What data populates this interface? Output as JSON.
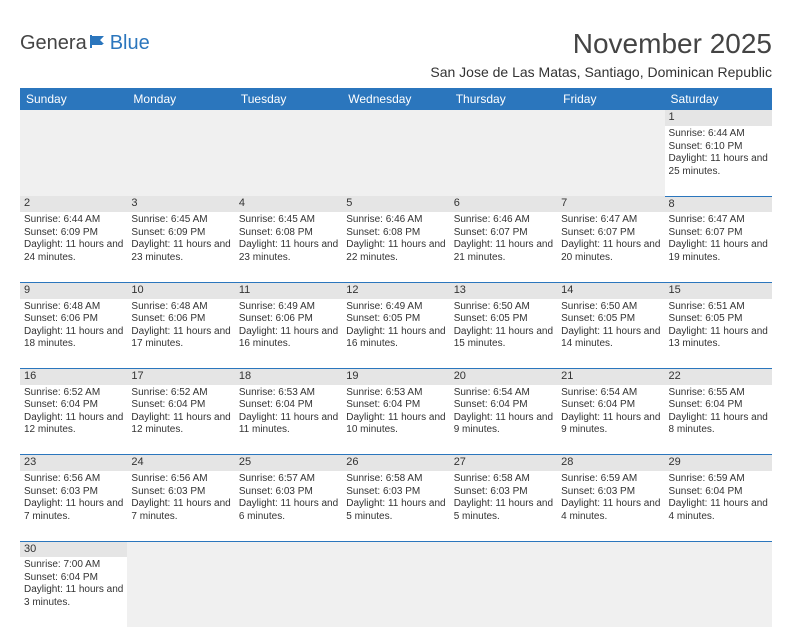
{
  "logo": {
    "text1": "Genera",
    "text2": "Blue"
  },
  "title": "November 2025",
  "subtitle": "San Jose de Las Matas, Santiago, Dominican Republic",
  "colors": {
    "header_bg": "#2b76bd",
    "header_fg": "#ffffff",
    "daynum_bg": "#e5e5e5",
    "rule": "#2b76bd",
    "empty_bg": "#f0f0f0",
    "text": "#333333"
  },
  "day_names": [
    "Sunday",
    "Monday",
    "Tuesday",
    "Wednesday",
    "Thursday",
    "Friday",
    "Saturday"
  ],
  "weeks": [
    [
      null,
      null,
      null,
      null,
      null,
      null,
      {
        "n": "1",
        "sr": "6:44 AM",
        "ss": "6:10 PM",
        "dl": "11 hours and 25 minutes."
      }
    ],
    [
      {
        "n": "2",
        "sr": "6:44 AM",
        "ss": "6:09 PM",
        "dl": "11 hours and 24 minutes."
      },
      {
        "n": "3",
        "sr": "6:45 AM",
        "ss": "6:09 PM",
        "dl": "11 hours and 23 minutes."
      },
      {
        "n": "4",
        "sr": "6:45 AM",
        "ss": "6:08 PM",
        "dl": "11 hours and 23 minutes."
      },
      {
        "n": "5",
        "sr": "6:46 AM",
        "ss": "6:08 PM",
        "dl": "11 hours and 22 minutes."
      },
      {
        "n": "6",
        "sr": "6:46 AM",
        "ss": "6:07 PM",
        "dl": "11 hours and 21 minutes."
      },
      {
        "n": "7",
        "sr": "6:47 AM",
        "ss": "6:07 PM",
        "dl": "11 hours and 20 minutes."
      },
      {
        "n": "8",
        "sr": "6:47 AM",
        "ss": "6:07 PM",
        "dl": "11 hours and 19 minutes."
      }
    ],
    [
      {
        "n": "9",
        "sr": "6:48 AM",
        "ss": "6:06 PM",
        "dl": "11 hours and 18 minutes."
      },
      {
        "n": "10",
        "sr": "6:48 AM",
        "ss": "6:06 PM",
        "dl": "11 hours and 17 minutes."
      },
      {
        "n": "11",
        "sr": "6:49 AM",
        "ss": "6:06 PM",
        "dl": "11 hours and 16 minutes."
      },
      {
        "n": "12",
        "sr": "6:49 AM",
        "ss": "6:05 PM",
        "dl": "11 hours and 16 minutes."
      },
      {
        "n": "13",
        "sr": "6:50 AM",
        "ss": "6:05 PM",
        "dl": "11 hours and 15 minutes."
      },
      {
        "n": "14",
        "sr": "6:50 AM",
        "ss": "6:05 PM",
        "dl": "11 hours and 14 minutes."
      },
      {
        "n": "15",
        "sr": "6:51 AM",
        "ss": "6:05 PM",
        "dl": "11 hours and 13 minutes."
      }
    ],
    [
      {
        "n": "16",
        "sr": "6:52 AM",
        "ss": "6:04 PM",
        "dl": "11 hours and 12 minutes."
      },
      {
        "n": "17",
        "sr": "6:52 AM",
        "ss": "6:04 PM",
        "dl": "11 hours and 12 minutes."
      },
      {
        "n": "18",
        "sr": "6:53 AM",
        "ss": "6:04 PM",
        "dl": "11 hours and 11 minutes."
      },
      {
        "n": "19",
        "sr": "6:53 AM",
        "ss": "6:04 PM",
        "dl": "11 hours and 10 minutes."
      },
      {
        "n": "20",
        "sr": "6:54 AM",
        "ss": "6:04 PM",
        "dl": "11 hours and 9 minutes."
      },
      {
        "n": "21",
        "sr": "6:54 AM",
        "ss": "6:04 PM",
        "dl": "11 hours and 9 minutes."
      },
      {
        "n": "22",
        "sr": "6:55 AM",
        "ss": "6:04 PM",
        "dl": "11 hours and 8 minutes."
      }
    ],
    [
      {
        "n": "23",
        "sr": "6:56 AM",
        "ss": "6:03 PM",
        "dl": "11 hours and 7 minutes."
      },
      {
        "n": "24",
        "sr": "6:56 AM",
        "ss": "6:03 PM",
        "dl": "11 hours and 7 minutes."
      },
      {
        "n": "25",
        "sr": "6:57 AM",
        "ss": "6:03 PM",
        "dl": "11 hours and 6 minutes."
      },
      {
        "n": "26",
        "sr": "6:58 AM",
        "ss": "6:03 PM",
        "dl": "11 hours and 5 minutes."
      },
      {
        "n": "27",
        "sr": "6:58 AM",
        "ss": "6:03 PM",
        "dl": "11 hours and 5 minutes."
      },
      {
        "n": "28",
        "sr": "6:59 AM",
        "ss": "6:03 PM",
        "dl": "11 hours and 4 minutes."
      },
      {
        "n": "29",
        "sr": "6:59 AM",
        "ss": "6:04 PM",
        "dl": "11 hours and 4 minutes."
      }
    ],
    [
      {
        "n": "30",
        "sr": "7:00 AM",
        "ss": "6:04 PM",
        "dl": "11 hours and 3 minutes."
      },
      null,
      null,
      null,
      null,
      null,
      null
    ]
  ],
  "labels": {
    "sunrise": "Sunrise:",
    "sunset": "Sunset:",
    "daylight": "Daylight:"
  }
}
